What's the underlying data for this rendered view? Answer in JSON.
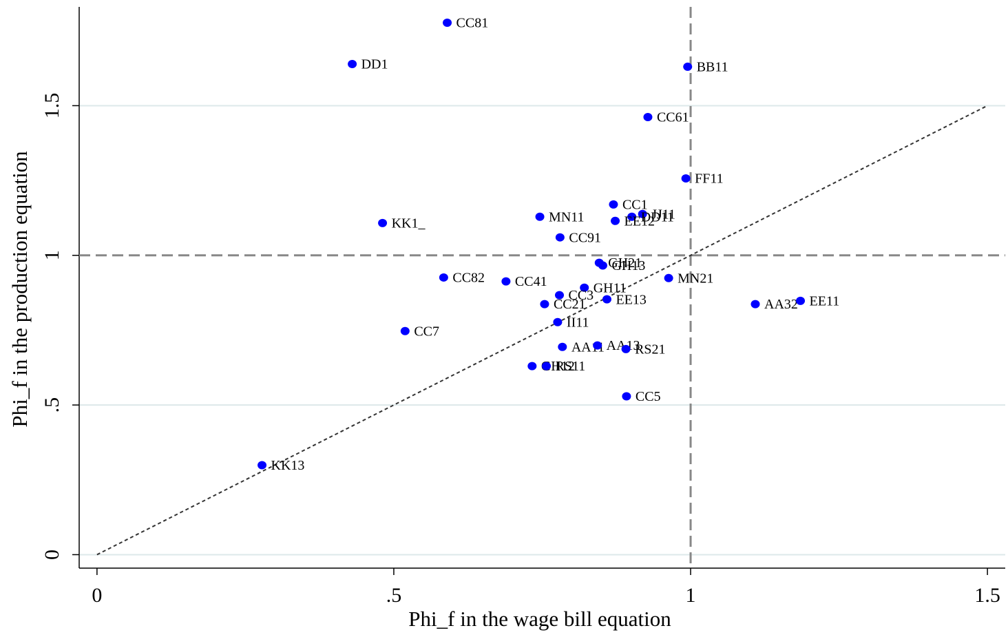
{
  "chart_data": {
    "type": "scatter",
    "x_label": "Phi_f in the wage bill equation",
    "y_label": "Phi_f in the production equation",
    "color": "#0000ff",
    "point_labels": [
      "CC81",
      "DD1",
      "BB11",
      "CC61",
      "FF11",
      "CC1",
      "JJ11",
      "DD11",
      "EE12",
      "KK1_",
      "MN11",
      "CC91",
      "GH21",
      "GH13",
      "MN21",
      "CC82",
      "CC41",
      "GH11",
      "CC3",
      "EE13",
      "CC21",
      "AA32",
      "EE11",
      "II11",
      "CC7",
      "AA11",
      "AA13",
      "RS21",
      "GH12",
      "RS11",
      "CC5",
      "KK13"
    ],
    "x": [
      0.59,
      0.43,
      0.995,
      0.928,
      0.992,
      0.87,
      0.919,
      0.901,
      0.873,
      0.481,
      0.746,
      0.78,
      0.846,
      0.852,
      0.963,
      0.584,
      0.689,
      0.821,
      0.779,
      0.859,
      0.754,
      1.109,
      1.185,
      0.776,
      0.519,
      0.784,
      0.843,
      0.891,
      0.733,
      0.757,
      0.892,
      0.278
    ],
    "values": [
      1.777,
      1.639,
      1.63,
      1.462,
      1.257,
      1.17,
      1.138,
      1.129,
      1.115,
      1.108,
      1.129,
      1.06,
      0.975,
      0.966,
      0.924,
      0.926,
      0.913,
      0.892,
      0.867,
      0.853,
      0.837,
      0.837,
      0.848,
      0.777,
      0.747,
      0.694,
      0.699,
      0.687,
      0.63,
      0.63,
      0.529,
      0.299
    ],
    "xlim": [
      -0.03,
      1.53
    ],
    "ylim": [
      -0.045,
      1.83
    ],
    "xticks": [
      0,
      {
        "value": 0.5,
        "label": ".5"
      },
      1,
      1.5
    ],
    "yticks": [
      0,
      {
        "value": 0.5,
        "label": ".5"
      },
      1,
      1.5
    ],
    "grid": true,
    "vline": 1,
    "hline": 1,
    "diagonal": [
      0,
      1.5
    ]
  }
}
